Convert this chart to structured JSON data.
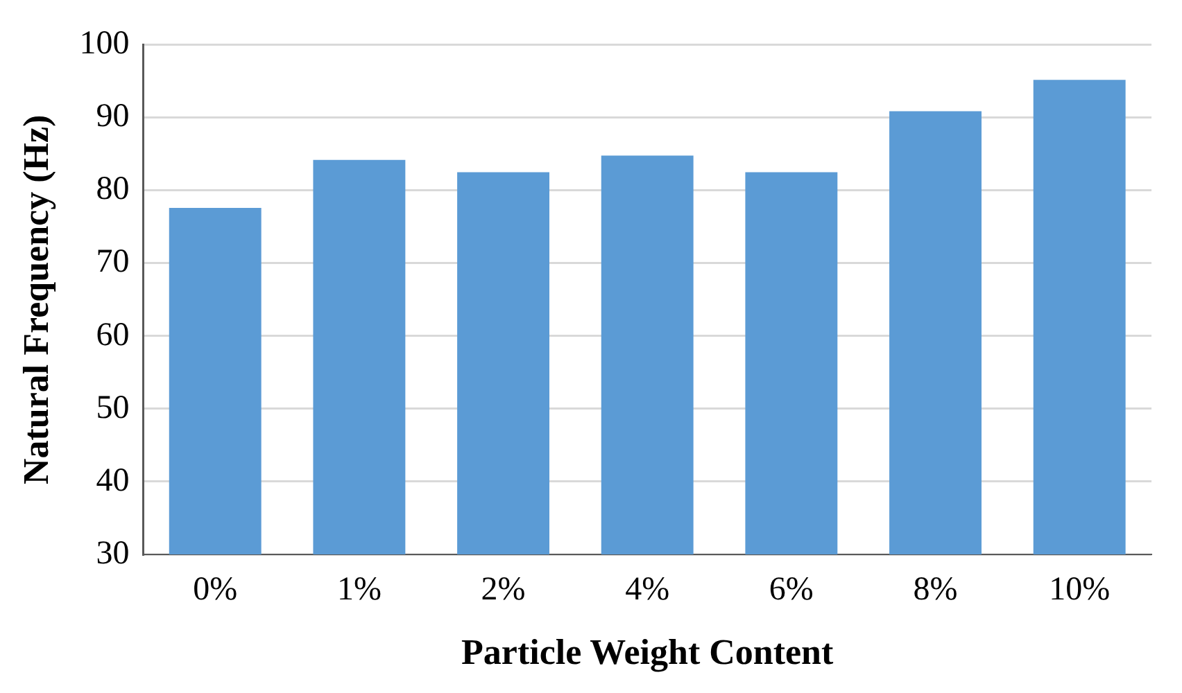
{
  "chart_data": {
    "type": "bar",
    "xlabel": "Particle Weight Content",
    "ylabel": "Natural Frequency (Hz)",
    "categories": [
      "0%",
      "1%",
      "2%",
      "4%",
      "6%",
      "8%",
      "10%"
    ],
    "values": [
      77.6,
      84.2,
      82.5,
      84.8,
      82.5,
      90.9,
      95.2
    ],
    "color": "#5b9bd5",
    "ylim": [
      30,
      100
    ],
    "yticks": [
      30,
      40,
      50,
      60,
      70,
      80,
      90,
      100
    ],
    "grid": "y"
  }
}
